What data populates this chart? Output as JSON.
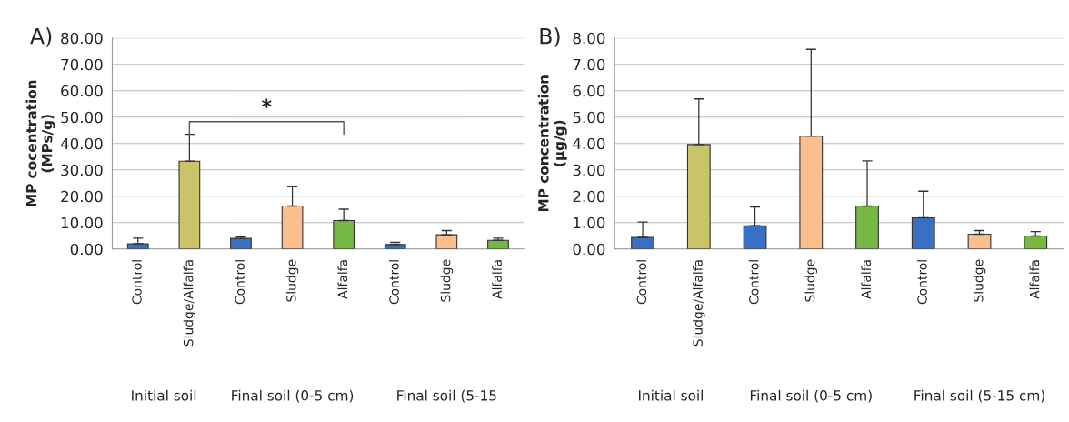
{
  "chart_data": [
    {
      "type": "bar",
      "title": "A)",
      "ylabel": "MP cocentration\n(MPs/g)",
      "categories": [
        "Control",
        "Sludge/Alfalfa",
        "Control",
        "Sludge",
        "Alfalfa",
        "Control",
        "Sludge",
        "Alfalfa"
      ],
      "values": [
        2.0,
        33.3,
        4.0,
        16.3,
        10.8,
        1.7,
        5.4,
        3.3
      ],
      "errors": [
        [
          2.0,
          4.1
        ],
        [
          33.3,
          43.5
        ],
        [
          4.0,
          4.6
        ],
        [
          16.3,
          23.6
        ],
        [
          10.8,
          15.1
        ],
        [
          1.7,
          2.5
        ],
        [
          5.4,
          7.0
        ],
        [
          3.3,
          4.1
        ]
      ],
      "colors": [
        "#3a6fc4",
        "#c9c46a",
        "#3a6fc4",
        "#fbbf8e",
        "#76b843",
        "#3a6fc4",
        "#fbbf8e",
        "#76b843"
      ],
      "ylim": [
        0,
        80
      ],
      "yticks": [
        {
          "value": 0,
          "label": "0.00"
        },
        {
          "value": 10,
          "label": "10.00"
        },
        {
          "value": 20,
          "label": "20.00"
        },
        {
          "value": 30,
          "label": "30.00"
        },
        {
          "value": 40,
          "label": "40.00"
        },
        {
          "value": 50,
          "label": "50.00"
        },
        {
          "value": 60,
          "label": "60.00"
        },
        {
          "value": 70,
          "label": "70.00"
        },
        {
          "value": 80,
          "label": "80.00"
        }
      ],
      "grid": "y",
      "annotations": [
        "Initial soil",
        "Final soil (0-5 cm)",
        "Final soil (5-15",
        "*"
      ]
    },
    {
      "type": "bar",
      "title": "B)",
      "ylabel": "MP concentration\n(µg/g)",
      "categories": [
        "Control",
        "Sludge/Alfalfa",
        "Control",
        "Sludge",
        "Alfalfa",
        "Control",
        "Sludge",
        "Alfalfa"
      ],
      "values": [
        0.44,
        3.96,
        0.88,
        4.28,
        1.63,
        1.18,
        0.56,
        0.49
      ],
      "errors": [
        [
          0.44,
          1.02
        ],
        [
          3.96,
          5.69
        ],
        [
          0.88,
          1.59
        ],
        [
          4.28,
          7.57
        ],
        [
          1.63,
          3.34
        ],
        [
          1.18,
          2.19
        ],
        [
          0.56,
          0.7
        ],
        [
          0.49,
          0.66
        ]
      ],
      "colors": [
        "#3a6fc4",
        "#c9c46a",
        "#3a6fc4",
        "#fbbf8e",
        "#76b843",
        "#3a6fc4",
        "#fbbf8e",
        "#76b843"
      ],
      "ylim": [
        0,
        8
      ],
      "yticks": [
        {
          "value": 0,
          "label": "0.00"
        },
        {
          "value": 1,
          "label": "1.00"
        },
        {
          "value": 2,
          "label": "2.00"
        },
        {
          "value": 3,
          "label": "3.00"
        },
        {
          "value": 4,
          "label": "4.00"
        },
        {
          "value": 5,
          "label": "5.00"
        },
        {
          "value": 6,
          "label": "6.00"
        },
        {
          "value": 7,
          "label": "7.00"
        },
        {
          "value": 8,
          "label": "8.00"
        }
      ],
      "grid": "y",
      "annotations": [
        "Initial soil",
        "Final soil (0-5 cm)",
        "Final soil (5-15 cm)"
      ]
    }
  ]
}
